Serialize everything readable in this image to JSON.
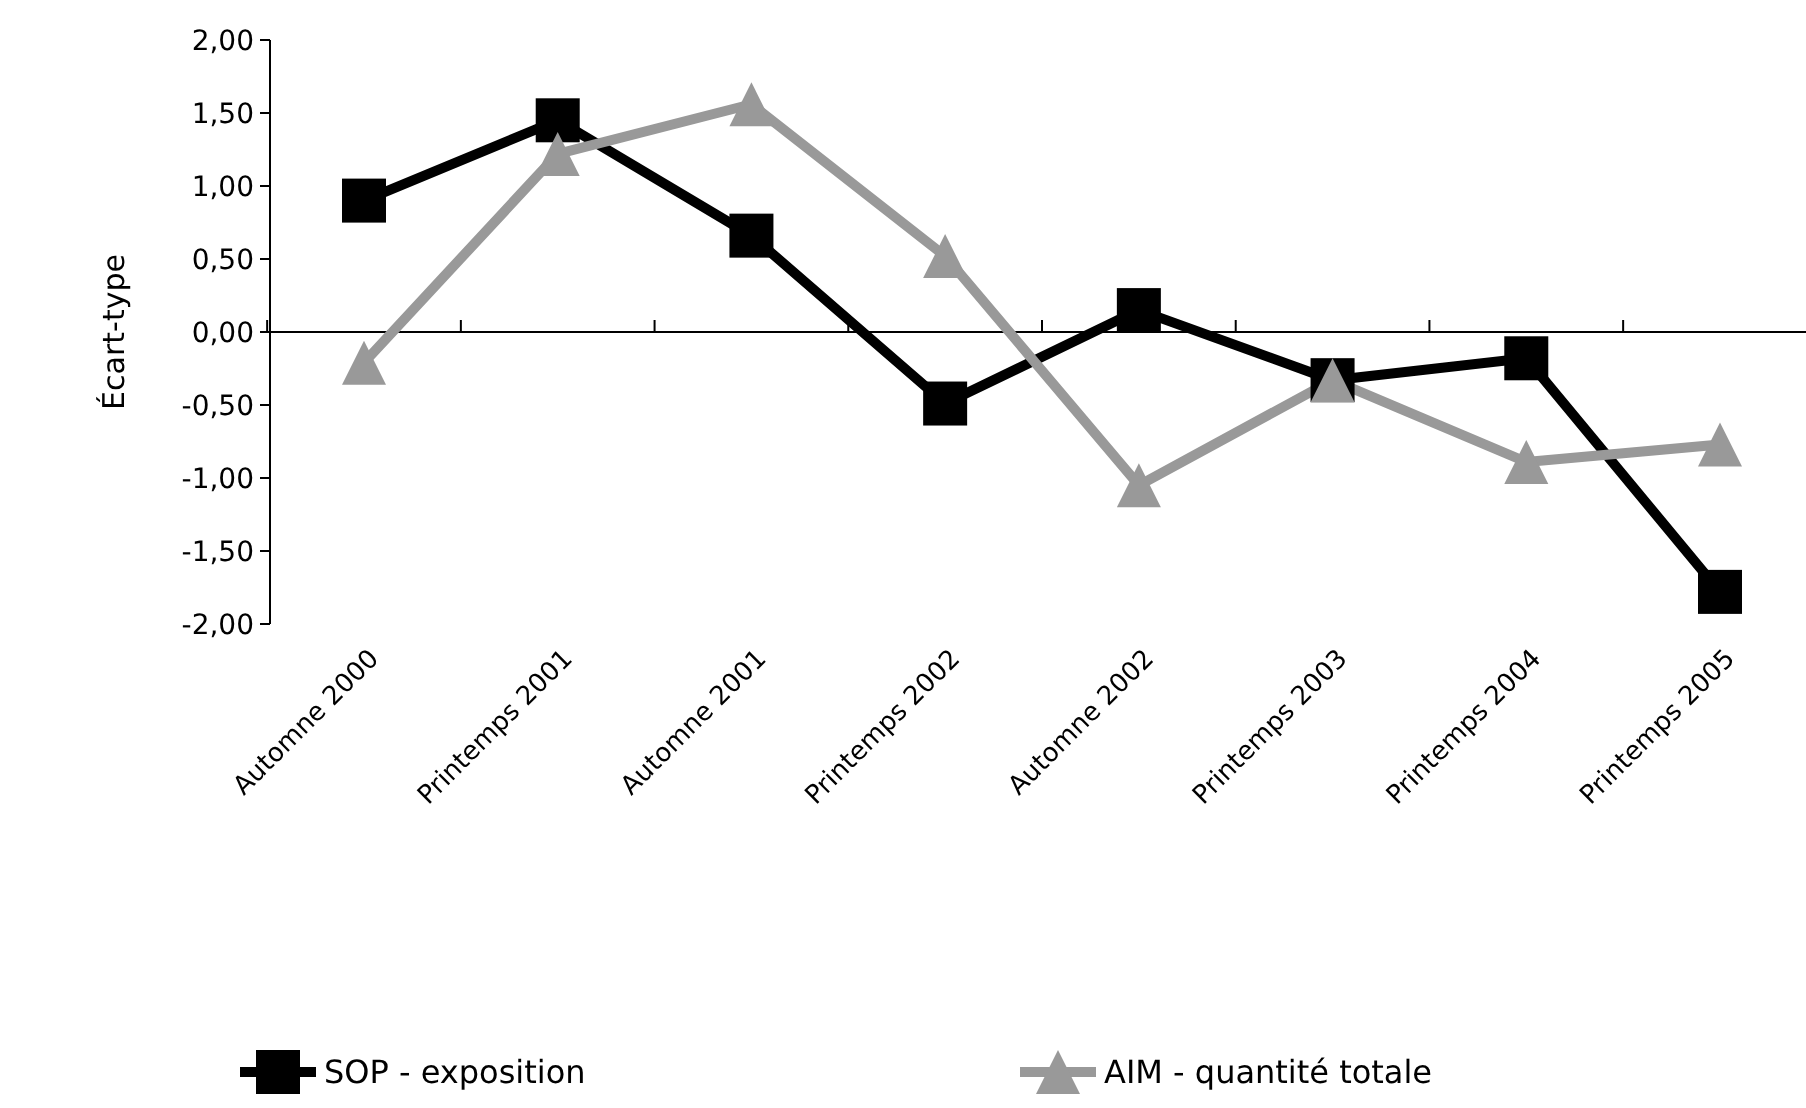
{
  "chart_data": {
    "type": "line",
    "ylabel": "Écart-type",
    "categories": [
      "Automne 2000",
      "Printemps 2001",
      "Automne 2001",
      "Printemps 2002",
      "Automne 2002",
      "Printemps 2003",
      "Printemps 2004",
      "Printemps 2005"
    ],
    "series": [
      {
        "name": "SOP - exposition",
        "color": "#000000",
        "marker": "square",
        "values": [
          0.9,
          1.45,
          0.66,
          -0.49,
          0.15,
          -0.33,
          -0.18,
          -1.78
        ]
      },
      {
        "name": "AIM - quantité totale",
        "color": "#999999",
        "marker": "triangle",
        "values": [
          -0.21,
          1.22,
          1.56,
          0.52,
          -1.05,
          -0.33,
          -0.89,
          -0.77
        ]
      }
    ],
    "ylim": [
      -2,
      2
    ],
    "yticks": [
      {
        "value": -2,
        "label": "-2,00"
      },
      {
        "value": -1.5,
        "label": "-1,50"
      },
      {
        "value": -1,
        "label": "-1,00"
      },
      {
        "value": -0.5,
        "label": "-0,50"
      },
      {
        "value": 0,
        "label": "0,00"
      },
      {
        "value": 0.5,
        "label": "0,50"
      },
      {
        "value": 1,
        "label": "1,00"
      },
      {
        "value": 1.5,
        "label": "1,50"
      },
      {
        "value": 2,
        "label": "2,00"
      }
    ],
    "legend": "bottom",
    "line_style": "solid"
  }
}
